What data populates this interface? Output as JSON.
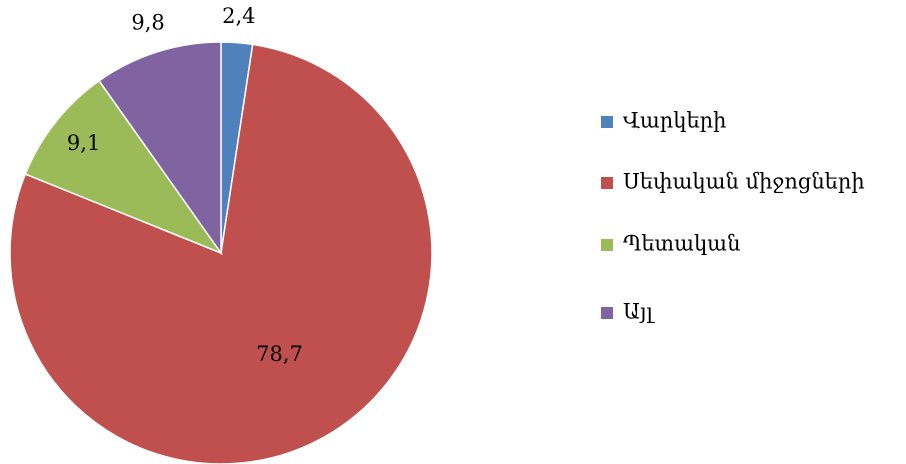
{
  "chart_data": {
    "type": "pie",
    "categories": [
      "Վարկերի",
      "Սեփական միջոցների",
      "Պետական",
      "Այլ"
    ],
    "values": [
      2.4,
      78.7,
      9.1,
      9.8
    ],
    "value_labels": [
      "2,4",
      "78,7",
      "9,1",
      "9,8"
    ],
    "colors": [
      "#4f81bd",
      "#c0504d",
      "#9bbb59",
      "#8064a2"
    ],
    "legend": "right"
  }
}
